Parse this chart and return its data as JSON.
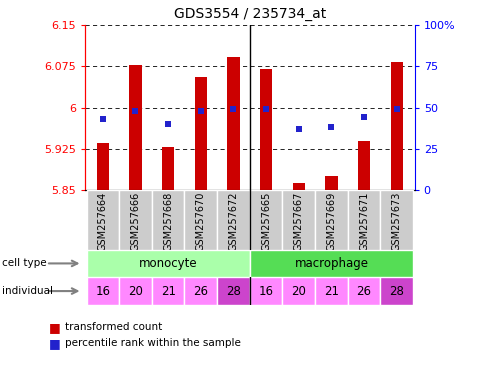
{
  "title": "GDS3554 / 235734_at",
  "samples": [
    "GSM257664",
    "GSM257666",
    "GSM257668",
    "GSM257670",
    "GSM257672",
    "GSM257665",
    "GSM257667",
    "GSM257669",
    "GSM257671",
    "GSM257673"
  ],
  "transformed_counts": [
    5.935,
    6.078,
    5.928,
    6.055,
    6.092,
    6.07,
    5.862,
    5.875,
    5.94,
    6.082
  ],
  "percentile_ranks": [
    43,
    48,
    40,
    48,
    49,
    49,
    37,
    38,
    44,
    49
  ],
  "individuals": [
    "16",
    "20",
    "21",
    "26",
    "28",
    "16",
    "20",
    "21",
    "26",
    "28"
  ],
  "ylim": [
    5.85,
    6.15
  ],
  "yticks": [
    5.85,
    5.925,
    6.0,
    6.075,
    6.15
  ],
  "ytick_labels": [
    "5.85",
    "5.925",
    "6",
    "6.075",
    "6.15"
  ],
  "right_yticks": [
    0,
    25,
    50,
    75,
    100
  ],
  "right_ytick_labels": [
    "0",
    "25",
    "50",
    "75",
    "100%"
  ],
  "bar_color": "#CC0000",
  "dot_color": "#2222CC",
  "bar_bottom": 5.85,
  "monocyte_color": "#AAFFAA",
  "macrophage_color": "#55DD55",
  "ind_color_normal": "#FF88FF",
  "ind_color_28": "#CC44CC",
  "sample_bg_color": "#CCCCCC",
  "legend_red_label": "transformed count",
  "legend_blue_label": "percentile rank within the sample",
  "n_samples": 10,
  "n_monocyte": 5
}
